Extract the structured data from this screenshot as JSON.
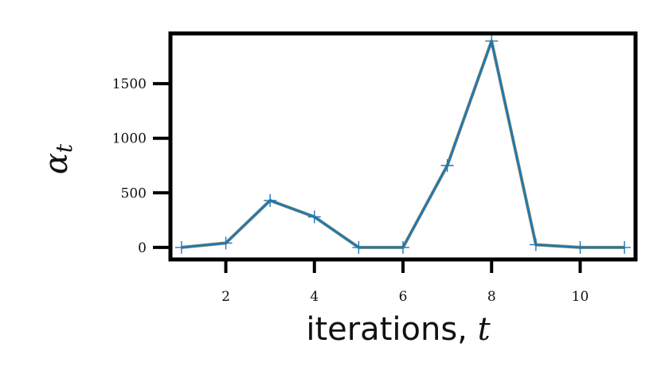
{
  "chart_data": {
    "type": "line",
    "title": "",
    "xlabel": {
      "text": "iterations, ",
      "variable": "t"
    },
    "ylabel": {
      "symbol": "α",
      "subscript": "t"
    },
    "xlim": [
      0.75,
      11.25
    ],
    "ylim": [
      -110,
      1960
    ],
    "xticks": [
      2,
      4,
      6,
      8,
      10
    ],
    "xtick_labels": [
      "2",
      "4",
      "6",
      "8",
      "10"
    ],
    "yticks": [
      0,
      500,
      1000,
      1500
    ],
    "ytick_labels": [
      "0",
      "500",
      "1000",
      "1500"
    ],
    "grid": false,
    "legend": "none",
    "series": [
      {
        "marker": "+",
        "color": "#1f77b4",
        "underlay_color": "#8c8c6a",
        "x": [
          1,
          2,
          3,
          4,
          5,
          6,
          7,
          8,
          9,
          10,
          11
        ],
        "y": [
          0,
          40,
          430,
          280,
          0,
          0,
          750,
          1890,
          25,
          0,
          0
        ]
      }
    ]
  }
}
